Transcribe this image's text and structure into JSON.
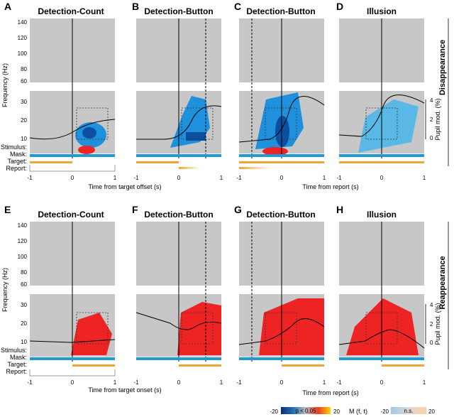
{
  "figure": {
    "rows": [
      {
        "name": "Disappearance",
        "x_axis_labels": [
          "Time from target offset (s)",
          "Time from report (s)"
        ],
        "panels": [
          {
            "letter": "A",
            "title": "Detection-Count"
          },
          {
            "letter": "B",
            "title": "Detection-Button"
          },
          {
            "letter": "C",
            "title": "Detection-Button"
          },
          {
            "letter": "D",
            "title": "Illusion"
          }
        ]
      },
      {
        "name": "Reappearance",
        "x_axis_labels": [
          "Time from target onset (s)",
          "Time from report (s)"
        ],
        "panels": [
          {
            "letter": "E",
            "title": "Detection-Count"
          },
          {
            "letter": "F",
            "title": "Detection-Button"
          },
          {
            "letter": "G",
            "title": "Detection-Button"
          },
          {
            "letter": "H",
            "title": "Illusion"
          }
        ]
      }
    ],
    "y_axis_label": "Frequency (Hz)",
    "y_ticks": [
      "140",
      "120",
      "100",
      "80",
      "60",
      "30",
      "20",
      "10"
    ],
    "x_ticks": [
      "-1",
      "0",
      "1"
    ],
    "event_labels": [
      "Stimulus:",
      "Mask:",
      "Target:",
      "Report:"
    ],
    "pupil_axis_label": "Pupil mod. (%)",
    "pupil_ticks": [
      "4",
      "2",
      "0"
    ],
    "colorbars": {
      "sig_label": "p < 0.05",
      "sig_min": "-20",
      "sig_max": "20",
      "metric_label": "M (f, t)",
      "ns_min": "-20",
      "ns_label": "n.s.",
      "ns_max": "20"
    },
    "colors": {
      "background_gray": "#c7c7c7",
      "mask_bar": "#1f9ad6",
      "target_bar": "#f0a530",
      "sig_blue": "#1e90dc",
      "sig_red": "#ee2424"
    }
  }
}
